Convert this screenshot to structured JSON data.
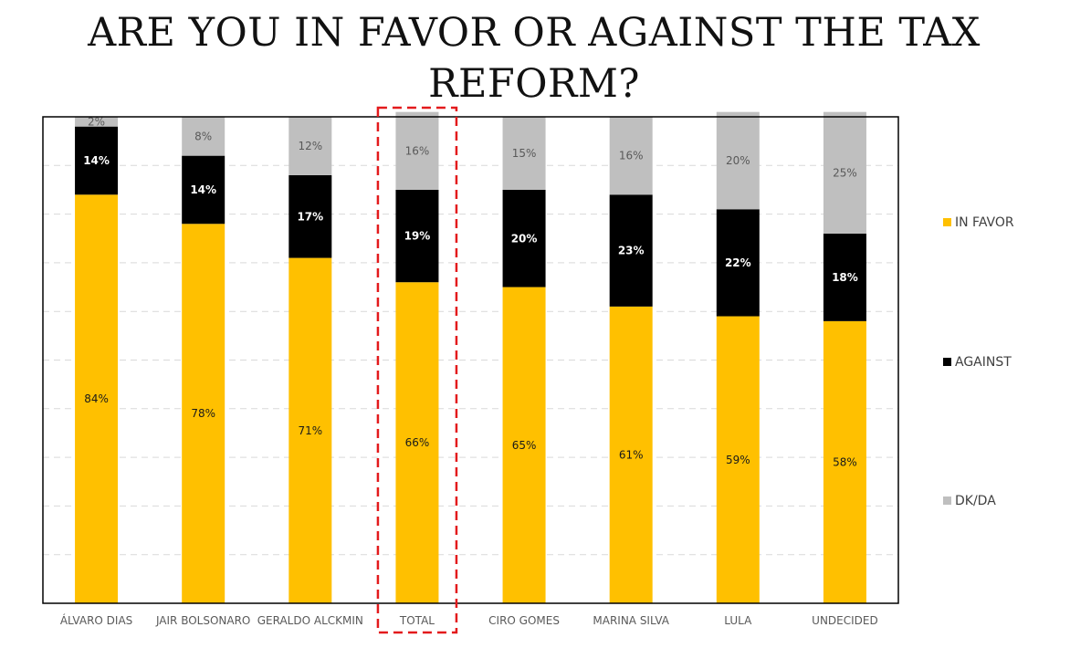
{
  "chart_data": {
    "type": "bar",
    "stacked": true,
    "title": "ARE YOU IN FAVOR OR AGAINST THE TAX REFORM?",
    "categories": [
      "ÁLVARO DIAS",
      "JAIR BOLSONARO",
      "GERALDO ALCKMIN",
      "TOTAL",
      "CIRO GOMES",
      "MARINA SILVA",
      "LULA",
      "UNDECIDED"
    ],
    "series": [
      {
        "name": "IN FAVOR",
        "color": "#FFC000",
        "label_color": "#1a1a1a",
        "bold": false,
        "values": [
          84,
          78,
          71,
          66,
          65,
          61,
          59,
          58
        ],
        "labels": [
          "84%",
          "78%",
          "71%",
          "66%",
          "65%",
          "61%",
          "59%",
          "58%"
        ]
      },
      {
        "name": "AGAINST",
        "color": "#000000",
        "label_color": "#ffffff",
        "bold": true,
        "values": [
          14,
          14,
          17,
          19,
          20,
          23,
          22,
          18
        ],
        "labels": [
          "14%",
          "14%",
          "17%",
          "19%",
          "20%",
          "23%",
          "22%",
          "18%"
        ]
      },
      {
        "name": "DK/DA",
        "color": "#BFBFBF",
        "label_color": "#595959",
        "bold": false,
        "values": [
          2,
          8,
          12,
          16,
          15,
          16,
          20,
          25
        ],
        "labels": [
          "2%",
          "8%",
          "12%",
          "16%",
          "15%",
          "16%",
          "20%",
          "25%"
        ]
      }
    ],
    "ylim": [
      0,
      100
    ],
    "xlabel": "",
    "ylabel": "",
    "grid": true,
    "legend": "right",
    "highlight_category": "TOTAL",
    "highlight_color": "#E31A1C"
  }
}
